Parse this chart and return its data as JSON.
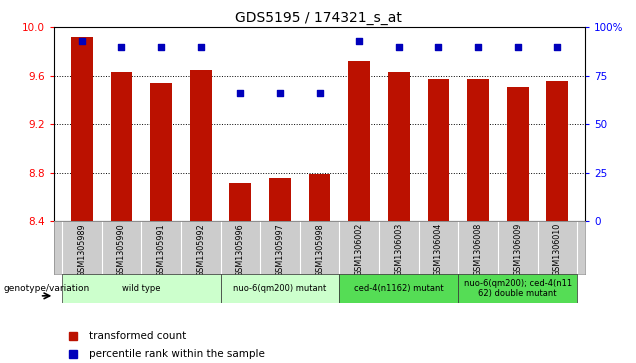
{
  "title": "GDS5195 / 174321_s_at",
  "samples": [
    "GSM1305989",
    "GSM1305990",
    "GSM1305991",
    "GSM1305992",
    "GSM1305996",
    "GSM1305997",
    "GSM1305998",
    "GSM1306002",
    "GSM1306003",
    "GSM1306004",
    "GSM1306008",
    "GSM1306009",
    "GSM1306010"
  ],
  "bar_values": [
    9.92,
    9.63,
    9.54,
    9.65,
    8.72,
    8.76,
    8.79,
    9.72,
    9.63,
    9.57,
    9.57,
    9.51,
    9.56
  ],
  "percentile_values": [
    93,
    90,
    90,
    90,
    66,
    66,
    66,
    93,
    90,
    90,
    90,
    90,
    90
  ],
  "ylim_left": [
    8.4,
    10.0
  ],
  "ylim_right": [
    0,
    100
  ],
  "yticks_left": [
    8.4,
    8.8,
    9.2,
    9.6,
    10.0
  ],
  "yticks_right": [
    0,
    25,
    50,
    75,
    100
  ],
  "ytick_labels_right": [
    "0",
    "25",
    "50",
    "75",
    "100%"
  ],
  "bar_color": "#bb1100",
  "percentile_color": "#0000bb",
  "group_starts": [
    0,
    4,
    7,
    10
  ],
  "group_ends": [
    3,
    6,
    9,
    12
  ],
  "group_labels": [
    "wild type",
    "nuo-6(qm200) mutant",
    "ced-4(n1162) mutant",
    "nuo-6(qm200); ced-4(n11\n62) double mutant"
  ],
  "group_colors": [
    "#ccffcc",
    "#ccffcc",
    "#55dd55",
    "#55dd55"
  ],
  "legend_labels": [
    "transformed count",
    "percentile rank within the sample"
  ],
  "legend_colors": [
    "#bb1100",
    "#0000bb"
  ],
  "genotype_label": "genotype/variation"
}
